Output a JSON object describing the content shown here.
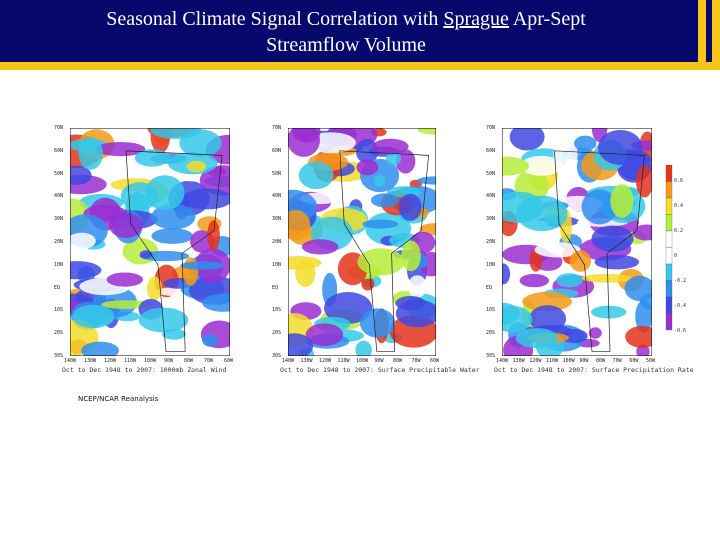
{
  "header": {
    "title_pre": "Seasonal Climate Signal Correlation with ",
    "title_link": "Sprague",
    "title_post": " Apr-Sept",
    "title_line2": "Streamflow Volume"
  },
  "credit": "NCEP/NCAR Reanalysis",
  "colors": {
    "header_bg": "#06096b",
    "accent": "#f5c51a"
  },
  "chart_data": [
    {
      "type": "heatmap",
      "title": "Oct to Dec 1948 to 2007: 1000mb Zonal Wind",
      "lat_ticks": [
        "70N",
        "60N",
        "50N",
        "40N",
        "30N",
        "20N",
        "10N",
        "EQ",
        "10S",
        "20S",
        "30S"
      ],
      "lon_ticks": [
        "140W",
        "130W",
        "120W",
        "110W",
        "100W",
        "90W",
        "80W",
        "70W",
        "60W"
      ]
    },
    {
      "type": "heatmap",
      "title": "Oct to Dec 1948 to 2007: Surface Precipitable Water",
      "lat_ticks": [
        "70N",
        "60N",
        "50N",
        "40N",
        "30N",
        "20N",
        "10N",
        "EQ",
        "10S",
        "20S",
        "30S"
      ],
      "lon_ticks": [
        "140W",
        "130W",
        "120W",
        "110W",
        "100W",
        "90W",
        "80W",
        "70W",
        "60W"
      ]
    },
    {
      "type": "heatmap",
      "title": "Oct to Dec 1948 to 2007: Surface Precipitation Rate",
      "lat_ticks": [
        "70N",
        "60N",
        "50N",
        "40N",
        "30N",
        "20N",
        "10N",
        "EQ",
        "10S",
        "20S",
        "30S"
      ],
      "lon_ticks": [
        "140W",
        "130W",
        "120W",
        "110W",
        "100W",
        "90W",
        "80W",
        "70W",
        "60W",
        "50W"
      ]
    }
  ],
  "colorbar": {
    "labels": [
      "0.6",
      "0.4",
      "0.2",
      "0",
      "-0.2",
      "-0.4",
      "-0.6"
    ]
  }
}
